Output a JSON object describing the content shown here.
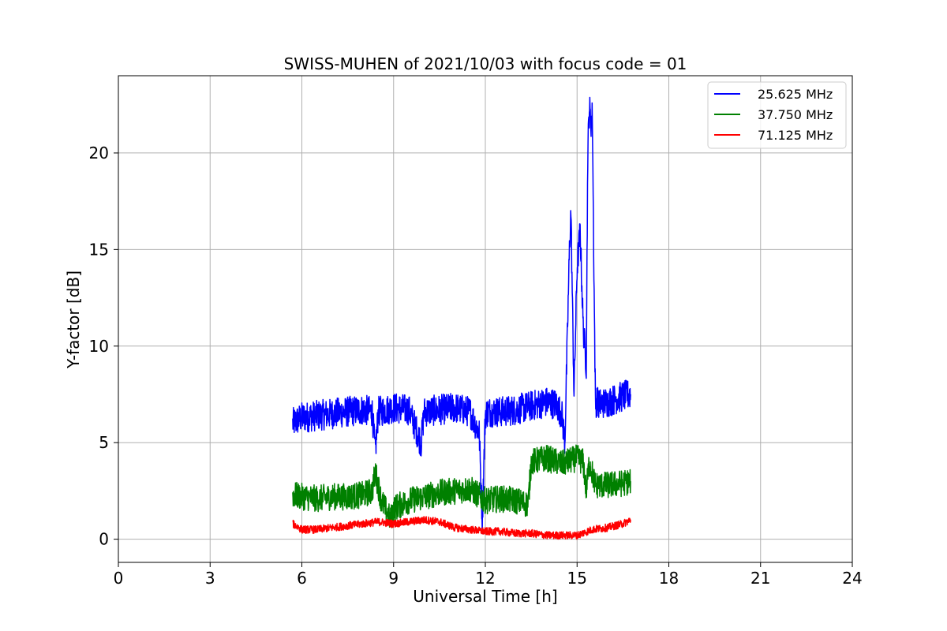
{
  "chart_data": {
    "type": "line",
    "title": "SWISS-MUHEN of 2021/10/03 with focus code = 01",
    "xlabel": "Universal Time [h]",
    "ylabel": "Y-factor [dB]",
    "xlim": [
      0,
      24
    ],
    "ylim": [
      -1.2,
      24
    ],
    "xticks": [
      0,
      3,
      6,
      9,
      12,
      15,
      18,
      21,
      24
    ],
    "yticks": [
      0,
      5,
      10,
      15,
      20
    ],
    "grid": true,
    "legend_position": "top-right",
    "series": [
      {
        "name": "25.625 MHz",
        "color": "#0000ff",
        "x": [
          5.7,
          6.0,
          6.5,
          7.0,
          7.5,
          8.0,
          8.3,
          8.4,
          8.5,
          9.0,
          9.5,
          9.9,
          10.0,
          10.5,
          11.0,
          11.5,
          11.8,
          11.9,
          12.0,
          12.1,
          12.5,
          13.0,
          13.5,
          14.0,
          14.3,
          14.5,
          14.6,
          14.75,
          14.8,
          14.85,
          14.9,
          15.0,
          15.1,
          15.2,
          15.3,
          15.35,
          15.4,
          15.45,
          15.5,
          15.55,
          15.6,
          15.65,
          15.7,
          16.0,
          16.5,
          16.75
        ],
        "y": [
          6.0,
          6.3,
          6.4,
          6.5,
          6.6,
          6.7,
          6.6,
          4.5,
          6.6,
          6.8,
          6.7,
          5.0,
          6.6,
          6.7,
          6.8,
          6.6,
          5.5,
          1.0,
          6.5,
          6.6,
          6.6,
          6.7,
          6.9,
          7.1,
          7.0,
          6.5,
          5.0,
          15.0,
          17.0,
          12.0,
          7.5,
          14.0,
          16.0,
          11.0,
          9.0,
          20.0,
          22.5,
          21.5,
          22.0,
          14.0,
          7.0,
          7.2,
          7.0,
          7.1,
          7.4,
          7.5
        ]
      },
      {
        "name": "37.750 MHz",
        "color": "#008000",
        "x": [
          5.7,
          6.0,
          6.5,
          7.0,
          7.5,
          8.0,
          8.3,
          8.4,
          8.6,
          8.9,
          9.0,
          9.5,
          10.0,
          10.5,
          11.0,
          11.5,
          12.0,
          12.5,
          13.0,
          13.4,
          13.5,
          14.0,
          14.5,
          15.0,
          15.2,
          15.3,
          15.4,
          15.6,
          16.0,
          16.5,
          16.75
        ],
        "y": [
          2.3,
          2.2,
          2.1,
          2.2,
          2.2,
          2.3,
          2.5,
          3.5,
          2.0,
          1.0,
          1.6,
          2.0,
          2.2,
          2.4,
          2.5,
          2.6,
          2.0,
          2.1,
          2.0,
          1.8,
          4.0,
          4.2,
          3.9,
          4.2,
          4.0,
          2.5,
          4.0,
          2.8,
          2.8,
          2.9,
          3.0
        ]
      },
      {
        "name": "71.125 MHz",
        "color": "#ff0000",
        "x": [
          5.7,
          6.0,
          6.5,
          7.0,
          7.5,
          8.0,
          8.5,
          9.0,
          9.5,
          10.0,
          10.5,
          11.0,
          11.5,
          12.0,
          12.5,
          13.0,
          13.5,
          14.0,
          14.5,
          15.0,
          15.5,
          16.0,
          16.5,
          16.75
        ],
        "y": [
          0.8,
          0.5,
          0.5,
          0.6,
          0.7,
          0.8,
          0.9,
          0.8,
          0.9,
          1.0,
          0.9,
          0.6,
          0.5,
          0.4,
          0.4,
          0.3,
          0.3,
          0.2,
          0.2,
          0.2,
          0.5,
          0.6,
          0.8,
          1.0
        ]
      }
    ]
  }
}
